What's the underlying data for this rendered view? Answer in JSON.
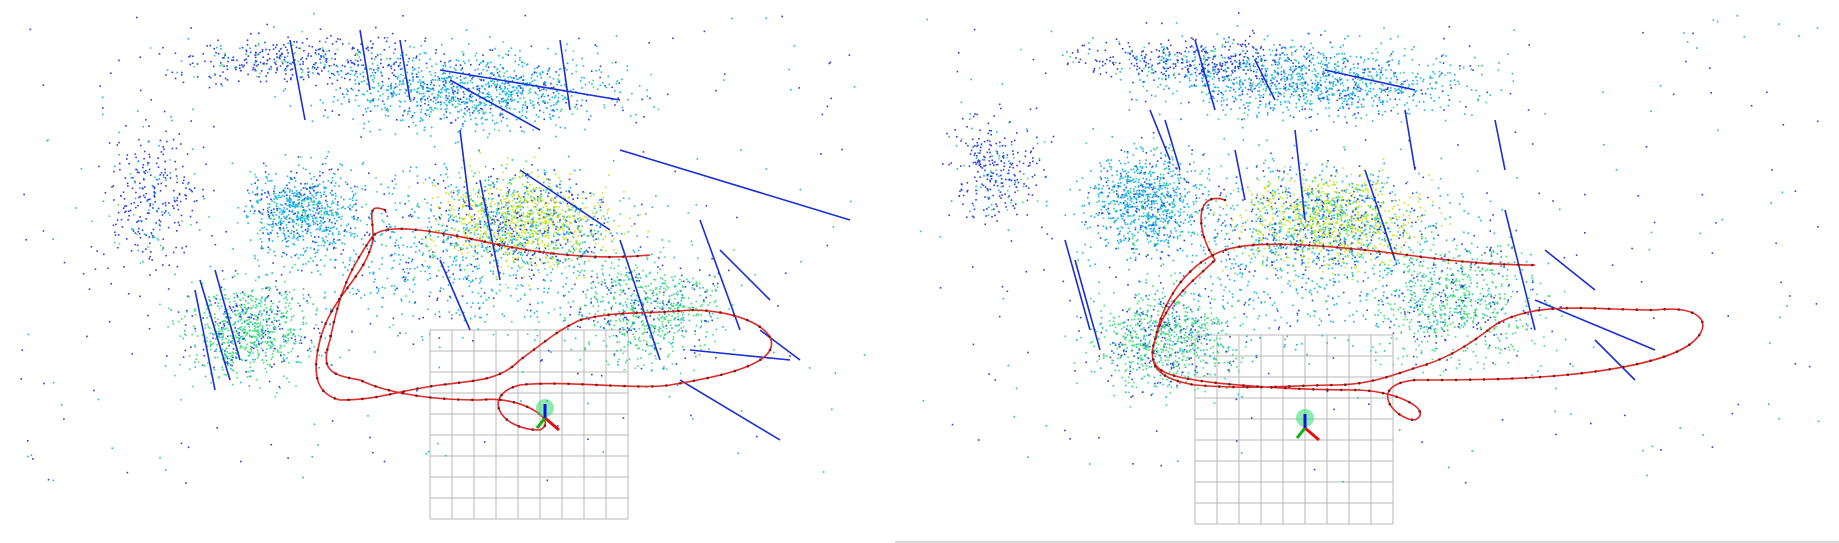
{
  "figure": {
    "panels": [
      {
        "id": "left",
        "content": "point-cloud-map",
        "trajectory": "closed-loop",
        "grid": "ground-grid"
      },
      {
        "id": "right",
        "content": "point-cloud-map",
        "trajectory": "closed-loop",
        "grid": "ground-grid"
      }
    ]
  },
  "colors": {
    "point_low": "#2a3fe0",
    "point_mid_low": "#19b6e8",
    "point_mid": "#3fe07a",
    "point_high": "#c8e61a",
    "line_features": "#1a2fd6",
    "trajectory": "#e02a2a",
    "grid": "#b8b8b8",
    "axis_x": "#e01010",
    "axis_y": "#10b010",
    "axis_z": "#1010e0"
  }
}
